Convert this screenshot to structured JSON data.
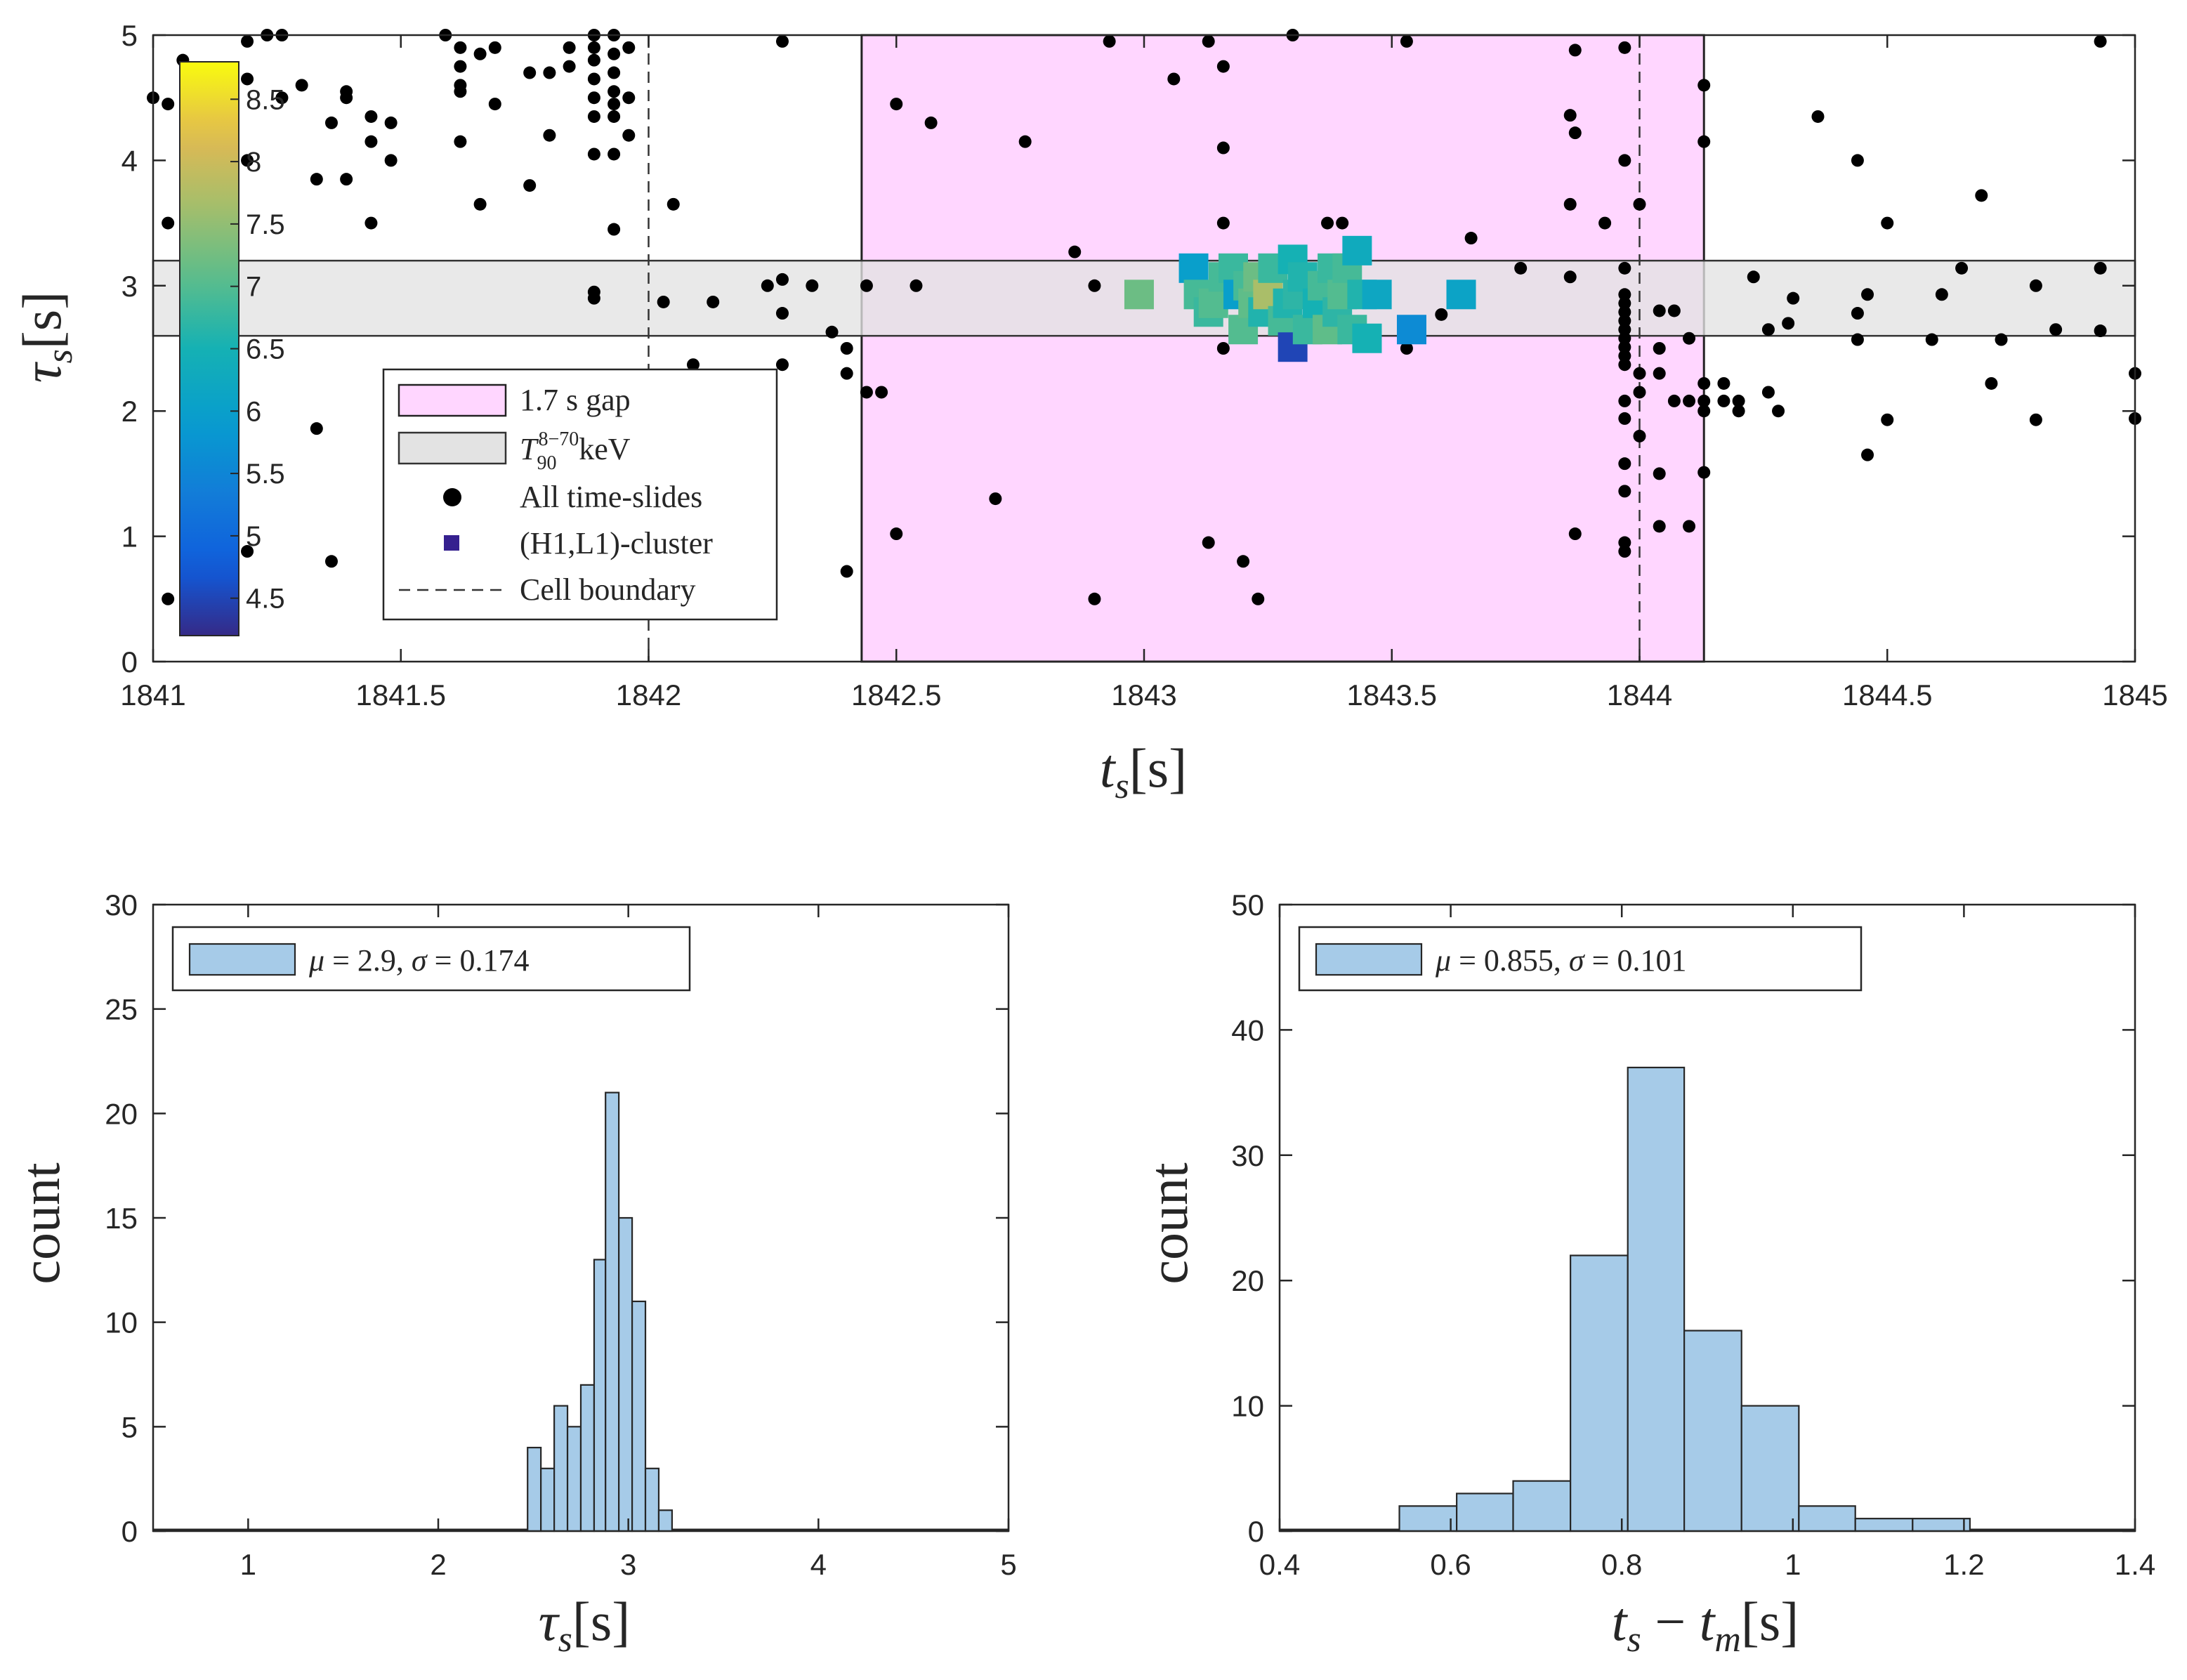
{
  "colors": {
    "gap_fill": "#ffd6ff",
    "band_fill": "#e3e3e3",
    "hist_fill": "#a6cbe8",
    "dot": "#000000",
    "cluster_legend": "#35208f"
  },
  "chart_data": [
    {
      "id": "scatter",
      "type": "scatter",
      "xlabel": "t_s [s]",
      "ylabel": "τ_s [s]",
      "xlim": [
        1841,
        1845
      ],
      "ylim": [
        0,
        5
      ],
      "xticks": [
        1841,
        1841.5,
        1842,
        1842.5,
        1843,
        1843.5,
        1844,
        1844.5,
        1845
      ],
      "xtick_labels": [
        "1841",
        "1841.5",
        "1842",
        "1842.5",
        "1843",
        "1843.5",
        "1844",
        "1844.5",
        "1845"
      ],
      "yticks": [
        0,
        1,
        2,
        3,
        4,
        5
      ],
      "ytick_labels": [
        "0",
        "1",
        "2",
        "3",
        "4",
        "5"
      ],
      "gap_region": {
        "x0": 1842.43,
        "x1": 1844.13,
        "label": "1.7 s gap"
      },
      "t90_band": {
        "y0": 2.6,
        "y1": 3.2,
        "label_base": "T",
        "label_sub": "90",
        "label_sup": "8−70",
        "label_suffix": "keV"
      },
      "cell_boundaries": [
        1842.0,
        1844.0
      ],
      "legend": {
        "location": "lower-left",
        "entries": [
          "1.7 s gap",
          "T90 8−70keV",
          "All time-slides",
          "(H1,L1)-cluster",
          "Cell boundary"
        ],
        "gap_label": "1.7 s gap",
        "band_label": "T",
        "band_label_sub": "90",
        "band_label_sup": "8−70",
        "band_label_suffix": "keV",
        "dots_label": "All time-slides",
        "cluster_label": "(H1,L1)-cluster",
        "cell_label": "Cell boundary"
      },
      "colorbar": {
        "range": [
          4.2,
          8.8
        ],
        "ticks": [
          4.5,
          5,
          5.5,
          6,
          6.5,
          7,
          7.5,
          8,
          8.5
        ],
        "tick_labels": [
          "4.5",
          "5",
          "5.5",
          "6",
          "6.5",
          "7",
          "7.5",
          "8",
          "8.5"
        ]
      },
      "all_time_slides": [
        [
          1841.0,
          4.5
        ],
        [
          1841.03,
          4.45
        ],
        [
          1841.03,
          3.5
        ],
        [
          1841.03,
          0.5
        ],
        [
          1841.06,
          4.8
        ],
        [
          1841.19,
          4.95
        ],
        [
          1841.19,
          4.65
        ],
        [
          1841.19,
          4.0
        ],
        [
          1841.19,
          0.88
        ],
        [
          1841.23,
          5.0
        ],
        [
          1841.26,
          5.0
        ],
        [
          1841.26,
          4.5
        ],
        [
          1841.3,
          4.6
        ],
        [
          1841.33,
          3.85
        ],
        [
          1841.33,
          1.86
        ],
        [
          1841.36,
          4.3
        ],
        [
          1841.36,
          0.8
        ],
        [
          1841.39,
          4.55
        ],
        [
          1841.39,
          4.5
        ],
        [
          1841.39,
          3.85
        ],
        [
          1841.44,
          4.35
        ],
        [
          1841.44,
          4.15
        ],
        [
          1841.44,
          3.5
        ],
        [
          1841.48,
          4.3
        ],
        [
          1841.48,
          4.0
        ],
        [
          1841.59,
          5.0
        ],
        [
          1841.62,
          4.9
        ],
        [
          1841.62,
          4.75
        ],
        [
          1841.62,
          4.6
        ],
        [
          1841.62,
          4.55
        ],
        [
          1841.62,
          4.15
        ],
        [
          1841.66,
          4.85
        ],
        [
          1841.66,
          3.65
        ],
        [
          1841.69,
          4.9
        ],
        [
          1841.69,
          4.45
        ],
        [
          1841.76,
          3.8
        ],
        [
          1841.76,
          4.7
        ],
        [
          1841.8,
          4.7
        ],
        [
          1841.8,
          4.2
        ],
        [
          1841.84,
          4.75
        ],
        [
          1841.84,
          4.9
        ],
        [
          1841.89,
          5.0
        ],
        [
          1841.89,
          4.9
        ],
        [
          1841.89,
          4.8
        ],
        [
          1841.89,
          4.65
        ],
        [
          1841.89,
          4.5
        ],
        [
          1841.89,
          4.35
        ],
        [
          1841.89,
          4.05
        ],
        [
          1841.89,
          2.95
        ],
        [
          1841.89,
          2.9
        ],
        [
          1841.93,
          5.0
        ],
        [
          1841.93,
          4.85
        ],
        [
          1841.93,
          4.7
        ],
        [
          1841.93,
          4.55
        ],
        [
          1841.93,
          4.45
        ],
        [
          1841.93,
          4.35
        ],
        [
          1841.93,
          4.05
        ],
        [
          1841.93,
          3.45
        ],
        [
          1841.96,
          4.9
        ],
        [
          1841.96,
          4.5
        ],
        [
          1841.96,
          4.2
        ],
        [
          1842.05,
          3.65
        ],
        [
          1842.03,
          2.87
        ],
        [
          1842.09,
          2.37
        ],
        [
          1842.13,
          2.87
        ],
        [
          1842.24,
          3.0
        ],
        [
          1842.27,
          3.05
        ],
        [
          1842.27,
          2.78
        ],
        [
          1842.27,
          4.95
        ],
        [
          1842.27,
          2.37
        ],
        [
          1842.33,
          3.0
        ],
        [
          1842.37,
          2.63
        ],
        [
          1842.4,
          2.5
        ],
        [
          1842.4,
          2.3
        ],
        [
          1842.4,
          0.72
        ],
        [
          1842.44,
          3.0
        ],
        [
          1842.44,
          2.15
        ],
        [
          1842.47,
          2.15
        ],
        [
          1842.5,
          4.45
        ],
        [
          1842.5,
          1.02
        ],
        [
          1842.54,
          3.0
        ],
        [
          1842.57,
          4.3
        ],
        [
          1842.7,
          1.3
        ],
        [
          1842.76,
          4.15
        ],
        [
          1842.86,
          3.27
        ],
        [
          1842.9,
          3.0
        ],
        [
          1842.9,
          0.5
        ],
        [
          1842.93,
          4.95
        ],
        [
          1843.06,
          4.65
        ],
        [
          1843.13,
          4.95
        ],
        [
          1843.13,
          0.95
        ],
        [
          1843.16,
          4.75
        ],
        [
          1843.16,
          4.1
        ],
        [
          1843.16,
          3.5
        ],
        [
          1843.16,
          2.5
        ],
        [
          1843.2,
          0.8
        ],
        [
          1843.23,
          0.5
        ],
        [
          1843.3,
          5.0
        ],
        [
          1843.37,
          3.5
        ],
        [
          1843.4,
          3.5
        ],
        [
          1843.53,
          4.95
        ],
        [
          1843.53,
          2.5
        ],
        [
          1843.6,
          2.77
        ],
        [
          1843.66,
          3.38
        ],
        [
          1843.76,
          3.14
        ],
        [
          1843.86,
          4.36
        ],
        [
          1843.86,
          3.65
        ],
        [
          1843.86,
          3.07
        ],
        [
          1843.87,
          4.88
        ],
        [
          1843.87,
          4.22
        ],
        [
          1843.87,
          1.02
        ],
        [
          1843.93,
          3.5
        ],
        [
          1843.97,
          4.9
        ],
        [
          1843.97,
          4.0
        ],
        [
          1843.97,
          3.14
        ],
        [
          1843.97,
          2.93
        ],
        [
          1843.97,
          2.86
        ],
        [
          1843.97,
          2.79
        ],
        [
          1843.97,
          2.72
        ],
        [
          1843.97,
          2.65
        ],
        [
          1843.97,
          2.58
        ],
        [
          1843.97,
          2.51
        ],
        [
          1843.97,
          2.44
        ],
        [
          1843.97,
          2.37
        ],
        [
          1843.97,
          2.08
        ],
        [
          1843.97,
          1.94
        ],
        [
          1843.97,
          1.58
        ],
        [
          1843.97,
          1.36
        ],
        [
          1843.97,
          0.95
        ],
        [
          1843.97,
          0.88
        ],
        [
          1844.0,
          3.65
        ],
        [
          1844.0,
          2.3
        ],
        [
          1844.0,
          2.15
        ],
        [
          1844.0,
          1.8
        ],
        [
          1844.04,
          2.8
        ],
        [
          1844.04,
          2.5
        ],
        [
          1844.04,
          2.3
        ],
        [
          1844.04,
          1.5
        ],
        [
          1844.04,
          1.08
        ],
        [
          1844.07,
          2.8
        ],
        [
          1844.07,
          2.08
        ],
        [
          1844.1,
          2.58
        ],
        [
          1844.1,
          2.08
        ],
        [
          1844.1,
          1.08
        ],
        [
          1844.13,
          4.6
        ],
        [
          1844.13,
          4.15
        ],
        [
          1844.13,
          2.22
        ],
        [
          1844.13,
          2.08
        ],
        [
          1844.13,
          2.0
        ],
        [
          1844.13,
          1.51
        ],
        [
          1844.17,
          2.22
        ],
        [
          1844.17,
          2.08
        ],
        [
          1844.2,
          2.08
        ],
        [
          1844.2,
          2.0
        ],
        [
          1844.23,
          3.07
        ],
        [
          1844.26,
          2.15
        ],
        [
          1844.26,
          2.65
        ],
        [
          1844.28,
          2.0
        ],
        [
          1844.3,
          2.7
        ],
        [
          1844.31,
          2.9
        ],
        [
          1844.36,
          4.35
        ],
        [
          1844.44,
          4.0
        ],
        [
          1844.44,
          2.78
        ],
        [
          1844.44,
          2.57
        ],
        [
          1844.46,
          2.93
        ],
        [
          1844.46,
          1.65
        ],
        [
          1844.5,
          3.5
        ],
        [
          1844.5,
          1.93
        ],
        [
          1844.59,
          2.57
        ],
        [
          1844.61,
          2.93
        ],
        [
          1844.65,
          3.14
        ],
        [
          1844.69,
          3.72
        ],
        [
          1844.71,
          2.22
        ],
        [
          1844.73,
          2.57
        ],
        [
          1844.8,
          3.0
        ],
        [
          1844.8,
          1.93
        ],
        [
          1844.84,
          2.65
        ],
        [
          1844.93,
          4.95
        ],
        [
          1844.93,
          2.64
        ],
        [
          1844.93,
          3.14
        ],
        [
          1845.0,
          2.3
        ],
        [
          1845.0,
          1.94
        ]
      ],
      "cluster_points": [
        [
          1842.99,
          2.93,
          7.2
        ],
        [
          1843.1,
          3.14,
          6.0
        ],
        [
          1843.11,
          2.93,
          6.9
        ],
        [
          1843.13,
          2.79,
          6.8
        ],
        [
          1843.14,
          2.86,
          7.0
        ],
        [
          1843.16,
          3.07,
          6.9
        ],
        [
          1843.18,
          3.14,
          6.8
        ],
        [
          1843.19,
          2.93,
          6.0
        ],
        [
          1843.2,
          2.65,
          7.0
        ],
        [
          1843.21,
          3.0,
          6.9
        ],
        [
          1843.22,
          2.86,
          7.1
        ],
        [
          1843.23,
          3.07,
          7.2
        ],
        [
          1843.24,
          2.79,
          6.6
        ],
        [
          1843.25,
          2.93,
          7.7
        ],
        [
          1843.26,
          3.14,
          6.8
        ],
        [
          1843.28,
          2.72,
          6.9
        ],
        [
          1843.29,
          2.86,
          6.6
        ],
        [
          1843.3,
          3.21,
          6.5
        ],
        [
          1843.31,
          2.93,
          6.7
        ],
        [
          1843.3,
          2.51,
          4.5
        ],
        [
          1843.32,
          3.07,
          6.6
        ],
        [
          1843.33,
          2.65,
          6.8
        ],
        [
          1843.35,
          2.86,
          6.5
        ],
        [
          1843.36,
          3.0,
          6.9
        ],
        [
          1843.37,
          2.65,
          7.1
        ],
        [
          1843.38,
          3.14,
          6.8
        ],
        [
          1843.39,
          2.79,
          6.7
        ],
        [
          1843.4,
          2.93,
          7.0
        ],
        [
          1843.41,
          3.14,
          6.9
        ],
        [
          1843.42,
          2.65,
          6.8
        ],
        [
          1843.43,
          3.28,
          6.3
        ],
        [
          1843.44,
          2.93,
          6.6
        ],
        [
          1843.45,
          2.58,
          6.5
        ],
        [
          1843.47,
          2.93,
          6.2
        ],
        [
          1843.54,
          2.65,
          5.6
        ],
        [
          1843.64,
          2.93,
          6.1
        ]
      ]
    },
    {
      "id": "hist-tau",
      "type": "histogram",
      "xlabel": "τ_s [s]",
      "ylabel": "count",
      "xlim": [
        0.5,
        5
      ],
      "ylim": [
        0,
        30
      ],
      "xticks": [
        1,
        2,
        3,
        4,
        5
      ],
      "xtick_labels": [
        "1",
        "2",
        "3",
        "4",
        "5"
      ],
      "yticks": [
        0,
        5,
        10,
        15,
        20,
        25,
        30
      ],
      "ytick_labels": [
        "0",
        "5",
        "10",
        "15",
        "20",
        "25",
        "30"
      ],
      "bin_edges": [
        2.47,
        2.54,
        2.61,
        2.68,
        2.75,
        2.82,
        2.88,
        2.95,
        3.02,
        3.09,
        3.16,
        3.23,
        3.3
      ],
      "counts": [
        4,
        3,
        6,
        5,
        7,
        13,
        21,
        15,
        11,
        3,
        1,
        0
      ],
      "legend": {
        "location": "top-left",
        "mu_value": "2.9",
        "sigma_value": "0.174"
      }
    },
    {
      "id": "hist-dt",
      "type": "histogram",
      "xlabel": "t_s − t_m [s]",
      "ylabel": "count",
      "xlim": [
        0.4,
        1.4
      ],
      "ylim": [
        0,
        50
      ],
      "xticks": [
        0.4,
        0.6,
        0.8,
        1,
        1.2,
        1.4
      ],
      "xtick_labels": [
        "0.4",
        "0.6",
        "0.8",
        "1",
        "1.2",
        "1.4"
      ],
      "yticks": [
        0,
        10,
        20,
        30,
        40,
        50
      ],
      "ytick_labels": [
        "0",
        "10",
        "20",
        "30",
        "40",
        "50"
      ],
      "bin_edges": [
        0.54,
        0.607,
        0.673,
        0.74,
        0.807,
        0.873,
        0.94,
        1.007,
        1.073,
        1.14,
        1.207
      ],
      "counts": [
        2,
        3,
        4,
        22,
        37,
        16,
        10,
        2,
        1,
        1
      ],
      "legend": {
        "location": "top-left",
        "mu_value": "0.855",
        "sigma_value": "0.101"
      }
    }
  ]
}
